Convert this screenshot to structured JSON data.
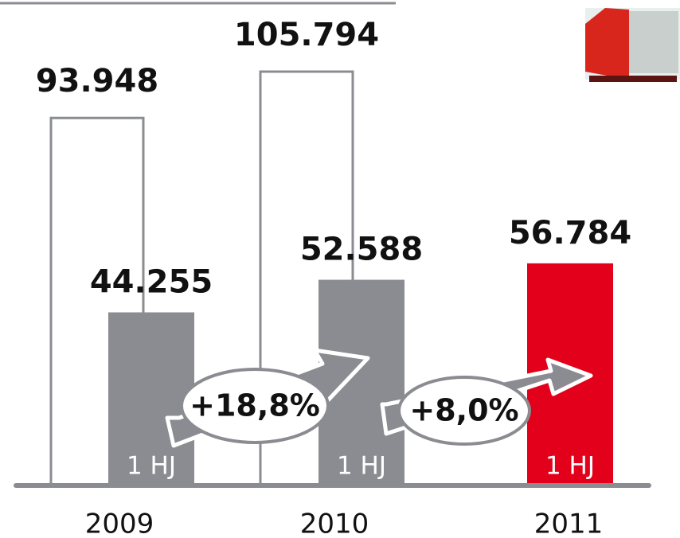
{
  "chart_data": {
    "type": "bar",
    "categories": [
      "2009",
      "2010",
      "2011"
    ],
    "series": [
      {
        "color": "#8a8c91",
        "values": [
          93948,
          105794,
          null
        ],
        "value_labels": [
          "93.948",
          "105.794",
          null
        ]
      },
      {
        "name": "1 HJ",
        "color": "#8a8c91",
        "highlight_color": "#e2001a",
        "values": [
          44255,
          52588,
          56784
        ],
        "value_labels": [
          "44.255",
          "52.588",
          "56.784"
        ]
      }
    ],
    "annotations": [
      "+18,8%",
      "+8,0%"
    ]
  }
}
